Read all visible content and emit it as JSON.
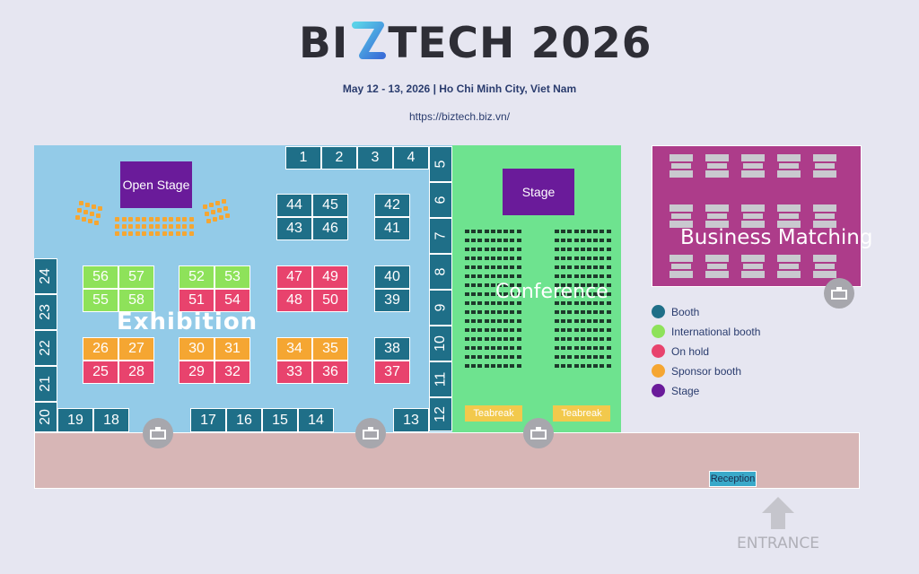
{
  "header": {
    "logo_text_left": "BI",
    "logo_text_right": "TECH 2026",
    "event_info": "May 12 - 13, 2026 | Ho Chi Minh City, Viet Nam",
    "url": "https://biztech.biz.vn/"
  },
  "colors": {
    "booth": "#1f6f88",
    "international_booth": "#8ee25a",
    "on_hold": "#e8436d",
    "sponsor_booth": "#f5a632",
    "stage": "#6a1b9a"
  },
  "areas": {
    "exhibition": "Exhibition",
    "conference": "Conference",
    "business_matching": "Business Matching",
    "open_stage": "Open Stage",
    "stage": "Stage",
    "teabreak_1": "Teabreak",
    "teabreak_2": "Teabreak",
    "reception": "Reception",
    "entrance": "ENTRANCE"
  },
  "legend": [
    {
      "label": "Booth",
      "color": "#1f6f88"
    },
    {
      "label": "International booth",
      "color": "#8ee25a"
    },
    {
      "label": "On hold",
      "color": "#e8436d"
    },
    {
      "label": "Sponsor booth",
      "color": "#f5a632"
    },
    {
      "label": "Stage",
      "color": "#6a1b9a"
    }
  ],
  "booths": [
    {
      "number": "1",
      "status": "booth"
    },
    {
      "number": "2",
      "status": "booth"
    },
    {
      "number": "3",
      "status": "booth"
    },
    {
      "number": "4",
      "status": "booth"
    },
    {
      "number": "5",
      "status": "booth"
    },
    {
      "number": "6",
      "status": "booth"
    },
    {
      "number": "7",
      "status": "booth"
    },
    {
      "number": "8",
      "status": "booth"
    },
    {
      "number": "9",
      "status": "booth"
    },
    {
      "number": "10",
      "status": "booth"
    },
    {
      "number": "11",
      "status": "booth"
    },
    {
      "number": "12",
      "status": "booth"
    },
    {
      "number": "13",
      "status": "booth"
    },
    {
      "number": "14",
      "status": "booth"
    },
    {
      "number": "15",
      "status": "booth"
    },
    {
      "number": "16",
      "status": "booth"
    },
    {
      "number": "17",
      "status": "booth"
    },
    {
      "number": "18",
      "status": "booth"
    },
    {
      "number": "19",
      "status": "booth"
    },
    {
      "number": "20",
      "status": "booth"
    },
    {
      "number": "21",
      "status": "booth"
    },
    {
      "number": "22",
      "status": "booth"
    },
    {
      "number": "23",
      "status": "booth"
    },
    {
      "number": "24",
      "status": "booth"
    },
    {
      "number": "25",
      "status": "on_hold"
    },
    {
      "number": "26",
      "status": "sponsor"
    },
    {
      "number": "27",
      "status": "sponsor"
    },
    {
      "number": "28",
      "status": "on_hold"
    },
    {
      "number": "29",
      "status": "on_hold"
    },
    {
      "number": "30",
      "status": "sponsor"
    },
    {
      "number": "31",
      "status": "sponsor"
    },
    {
      "number": "32",
      "status": "on_hold"
    },
    {
      "number": "33",
      "status": "on_hold"
    },
    {
      "number": "34",
      "status": "sponsor"
    },
    {
      "number": "35",
      "status": "sponsor"
    },
    {
      "number": "36",
      "status": "on_hold"
    },
    {
      "number": "37",
      "status": "on_hold"
    },
    {
      "number": "38",
      "status": "booth"
    },
    {
      "number": "39",
      "status": "booth"
    },
    {
      "number": "40",
      "status": "booth"
    },
    {
      "number": "41",
      "status": "booth"
    },
    {
      "number": "42",
      "status": "booth"
    },
    {
      "number": "43",
      "status": "booth"
    },
    {
      "number": "44",
      "status": "booth"
    },
    {
      "number": "45",
      "status": "booth"
    },
    {
      "number": "46",
      "status": "booth"
    },
    {
      "number": "47",
      "status": "on_hold"
    },
    {
      "number": "48",
      "status": "on_hold"
    },
    {
      "number": "49",
      "status": "on_hold"
    },
    {
      "number": "50",
      "status": "on_hold"
    },
    {
      "number": "51",
      "status": "on_hold"
    },
    {
      "number": "52",
      "status": "international"
    },
    {
      "number": "53",
      "status": "international"
    },
    {
      "number": "54",
      "status": "on_hold"
    },
    {
      "number": "55",
      "status": "international"
    },
    {
      "number": "56",
      "status": "international"
    },
    {
      "number": "57",
      "status": "international"
    },
    {
      "number": "58",
      "status": "international"
    }
  ]
}
